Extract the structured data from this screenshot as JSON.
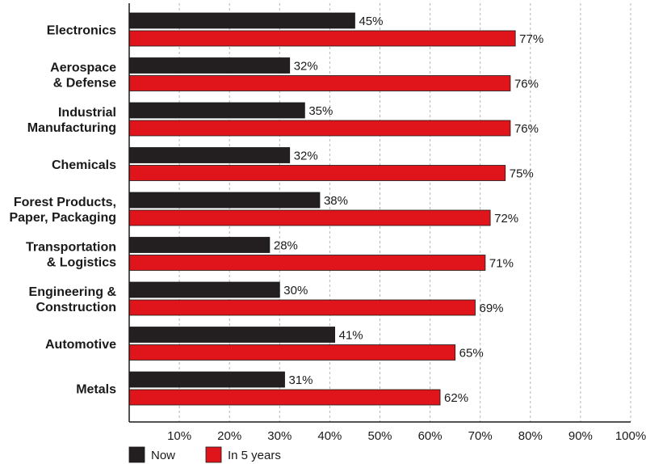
{
  "chart_data": {
    "type": "bar",
    "orientation": "horizontal",
    "categories": [
      [
        "Electronics"
      ],
      [
        "Aerospace",
        "& Defense"
      ],
      [
        "Industrial",
        "Manufacturing"
      ],
      [
        "Chemicals"
      ],
      [
        "Forest Products,",
        "Paper, Packaging"
      ],
      [
        "Transportation",
        "& Logistics"
      ],
      [
        "Engineering &",
        "Construction"
      ],
      [
        "Automotive"
      ],
      [
        "Metals"
      ]
    ],
    "series": [
      {
        "name": "Now",
        "color": "#231f20",
        "values": [
          45,
          32,
          35,
          32,
          38,
          28,
          30,
          41,
          31
        ]
      },
      {
        "name": "In 5 years",
        "color": "#e0141b",
        "values": [
          77,
          76,
          76,
          75,
          72,
          71,
          69,
          65,
          62
        ]
      }
    ],
    "value_suffix": "%",
    "xlim": [
      0,
      100
    ],
    "xticks": [
      10,
      20,
      30,
      40,
      50,
      60,
      70,
      80,
      90,
      100
    ],
    "xtick_labels": [
      "10%",
      "20%",
      "30%",
      "40%",
      "50%",
      "60%",
      "70%",
      "80%",
      "90%",
      "100%"
    ],
    "grid": "vertical dashed",
    "legend_position": "bottom-left",
    "title": "",
    "xlabel": "",
    "ylabel": ""
  }
}
